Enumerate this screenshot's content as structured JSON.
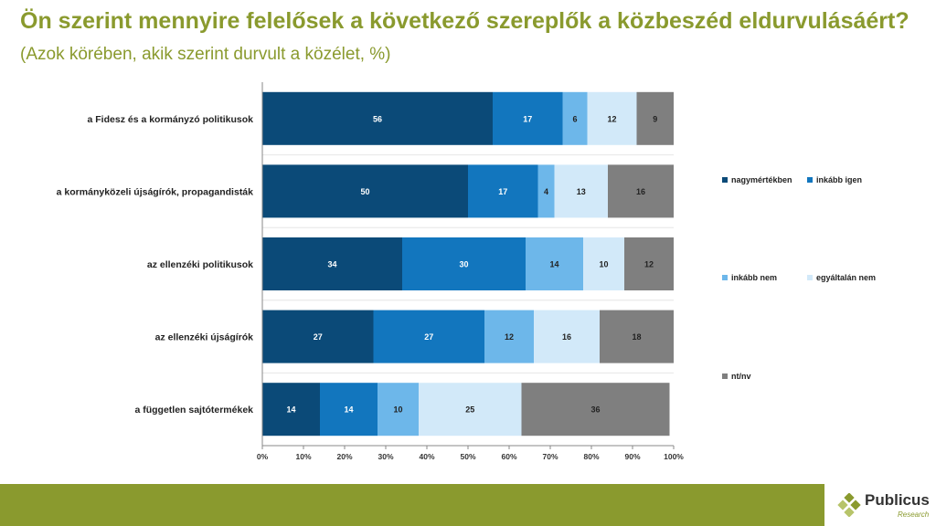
{
  "title": {
    "main": "Ön szerint mennyire felelősek a következő szereplők a közbeszéd eldurvulásáért?",
    "sub": "(Azok körében, akik szerint durvult a közélet, %)"
  },
  "chart_data": {
    "type": "bar",
    "orientation": "horizontal-stacked-100",
    "categories": [
      "a Fidesz és a kormányzó politikusok",
      "a kormányközeli újságírók, propagandisták",
      "az ellenzéki politikusok",
      "az ellenzéki újságírók",
      "a független sajtótermékek"
    ],
    "series": [
      {
        "name": "nagymértékben",
        "color": "#0b4a78",
        "values": [
          56,
          50,
          34,
          27,
          14
        ]
      },
      {
        "name": "inkább igen",
        "color": "#1276be",
        "values": [
          17,
          17,
          30,
          27,
          14
        ]
      },
      {
        "name": "inkább nem",
        "color": "#6db7ea",
        "values": [
          6,
          4,
          14,
          12,
          10
        ]
      },
      {
        "name": "egyáltalán nem",
        "color": "#d2e9f9",
        "values": [
          12,
          13,
          10,
          16,
          25
        ]
      },
      {
        "name": "nt/nv",
        "color": "#7f7f7f",
        "values": [
          9,
          16,
          12,
          18,
          36
        ]
      }
    ],
    "xticks": [
      "0%",
      "10%",
      "20%",
      "30%",
      "40%",
      "50%",
      "60%",
      "70%",
      "80%",
      "90%",
      "100%"
    ],
    "xlim": [
      0,
      100
    ],
    "legend_position": "right"
  },
  "footer": {
    "brand": "Publicus",
    "brand_sub": "Research"
  }
}
